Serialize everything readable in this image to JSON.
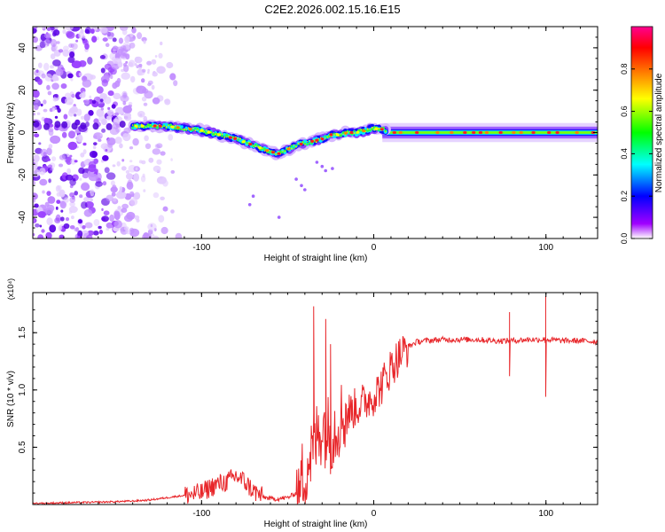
{
  "title": "C2E2.2026.002.15.16.E15",
  "chart_data": [
    {
      "type": "heatmap",
      "title": "C2E2.2026.002.15.16.E15",
      "xlabel": "Height of straight line (km)",
      "ylabel": "Frequency (Hz)",
      "xlim": [
        -198,
        130
      ],
      "ylim": [
        -50,
        50
      ],
      "xticks": [
        -100,
        0,
        100
      ],
      "yticks": [
        -40,
        -20,
        0,
        20,
        40
      ],
      "noise_region_x": [
        -198,
        -110
      ],
      "ridge": {
        "x": [
          -140,
          -130,
          -120,
          -110,
          -100,
          -90,
          -80,
          -70,
          -60,
          -55,
          -50,
          -45,
          -40,
          -35,
          -30,
          -25,
          -20,
          -15,
          -10,
          -5,
          0,
          5,
          10,
          20,
          40,
          60,
          80,
          100,
          130
        ],
        "y": [
          3,
          3.2,
          3,
          2,
          1,
          -1,
          -3,
          -6,
          -9,
          -10,
          -8,
          -6,
          -5,
          -4,
          -3,
          -1,
          -1,
          0,
          0,
          1,
          2,
          1.5,
          0.5,
          0,
          0,
          0,
          0,
          0,
          0
        ]
      },
      "colorbar": {
        "label": "Normalized spectral amplitude",
        "range": [
          0,
          1
        ],
        "ticks": [
          "0.0",
          "0.2",
          "0.4",
          "0.6",
          "0.8"
        ],
        "colors": [
          "#ffffff",
          "#a000ff",
          "#0000ff",
          "#00ffff",
          "#00ff00",
          "#ffff00",
          "#ff8000",
          "#ff0000",
          "#ff0090"
        ]
      }
    },
    {
      "type": "line",
      "xlabel": "Height of straight line (km)",
      "ylabel": "SNR (10 * v/v)",
      "multiplier": "(x10⁴)",
      "xlim": [
        -198,
        130
      ],
      "ylim": [
        0,
        1.85
      ],
      "xticks": [
        -100,
        0,
        100
      ],
      "yticks": [
        "0.5",
        "1.0",
        "1.5"
      ],
      "color": "#e8262a",
      "x": [
        -198,
        -180,
        -160,
        -140,
        -130,
        -120,
        -110,
        -100,
        -95,
        -90,
        -85,
        -80,
        -75,
        -70,
        -65,
        -60,
        -55,
        -50,
        -45,
        -40,
        -35,
        -30,
        -25,
        -20,
        -15,
        -10,
        -5,
        0,
        5,
        10,
        15,
        20,
        25,
        30,
        40,
        50,
        60,
        70,
        80,
        90,
        100,
        110,
        120,
        130
      ],
      "y": [
        0.01,
        0.015,
        0.02,
        0.03,
        0.04,
        0.06,
        0.08,
        0.1,
        0.15,
        0.18,
        0.2,
        0.25,
        0.2,
        0.12,
        0.07,
        0.05,
        0.05,
        0.06,
        0.1,
        0.3,
        0.5,
        0.7,
        0.6,
        0.75,
        0.8,
        0.85,
        0.9,
        0.95,
        1.05,
        1.2,
        1.3,
        1.38,
        1.42,
        1.43,
        1.44,
        1.44,
        1.44,
        1.43,
        1.43,
        1.44,
        1.44,
        1.43,
        1.43,
        1.42
      ],
      "spikes": [
        {
          "x": -35,
          "y": 1.73
        },
        {
          "x": -28,
          "y": 1.62
        },
        {
          "x": -25,
          "y": 1.4
        },
        {
          "x": 79,
          "y": 1.68
        },
        {
          "x": 79,
          "y": 1.12
        },
        {
          "x": 100,
          "y": 1.82
        },
        {
          "x": 100,
          "y": 0.94
        }
      ]
    }
  ]
}
